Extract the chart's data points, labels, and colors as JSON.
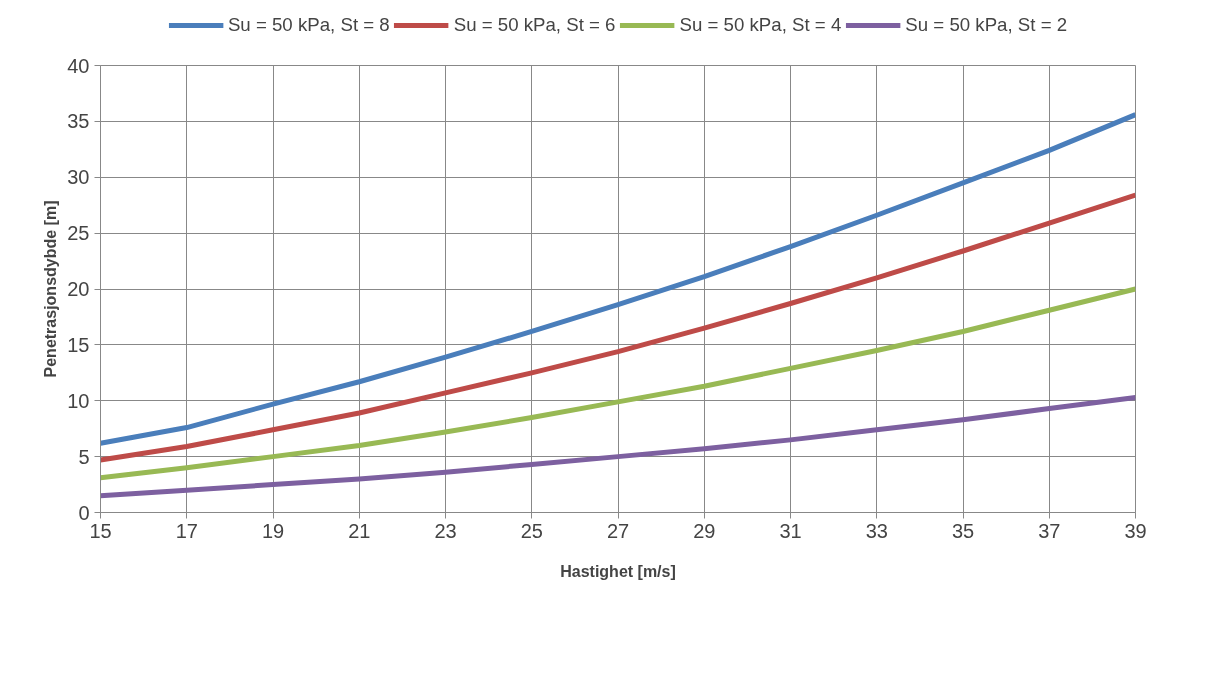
{
  "chart_data": {
    "type": "line",
    "xlabel": "Hastighet [m/s]",
    "ylabel": "Penetrasjonsdybde [m]",
    "x": [
      15,
      17,
      19,
      21,
      23,
      25,
      27,
      29,
      31,
      33,
      35,
      37,
      39
    ],
    "xlim": [
      15,
      39
    ],
    "xticks": [
      15,
      17,
      19,
      21,
      23,
      25,
      27,
      29,
      31,
      33,
      35,
      37,
      39
    ],
    "ylim": [
      0,
      40
    ],
    "yticks": [
      0,
      5,
      10,
      15,
      20,
      25,
      30,
      35,
      40
    ],
    "grid": true,
    "legend": "top",
    "marker": "none",
    "line_style": "solid",
    "series": [
      {
        "name": "Su = 50 kPa, St = 8",
        "color": "#4a7ebb",
        "values": [
          6.2,
          7.6,
          9.7,
          11.7,
          13.9,
          16.2,
          18.6,
          21.1,
          23.8,
          26.6,
          29.5,
          32.4,
          35.6
        ]
      },
      {
        "name": "Su = 50 kPa, St = 6",
        "color": "#be4b48",
        "values": [
          4.7,
          5.9,
          7.4,
          8.9,
          10.7,
          12.5,
          14.4,
          16.5,
          18.7,
          21.0,
          23.4,
          25.9,
          28.4
        ]
      },
      {
        "name": "Su = 50 kPa, St = 4",
        "color": "#98b954",
        "values": [
          3.1,
          4.0,
          5.0,
          6.0,
          7.2,
          8.5,
          9.9,
          11.3,
          12.9,
          14.5,
          16.2,
          18.1,
          20.0
        ]
      },
      {
        "name": "Su = 50 kPa, St = 2",
        "color": "#7d60a0",
        "values": [
          1.5,
          2.0,
          2.5,
          3.0,
          3.6,
          4.3,
          5.0,
          5.7,
          6.5,
          7.4,
          8.3,
          9.3,
          10.3
        ]
      }
    ]
  }
}
